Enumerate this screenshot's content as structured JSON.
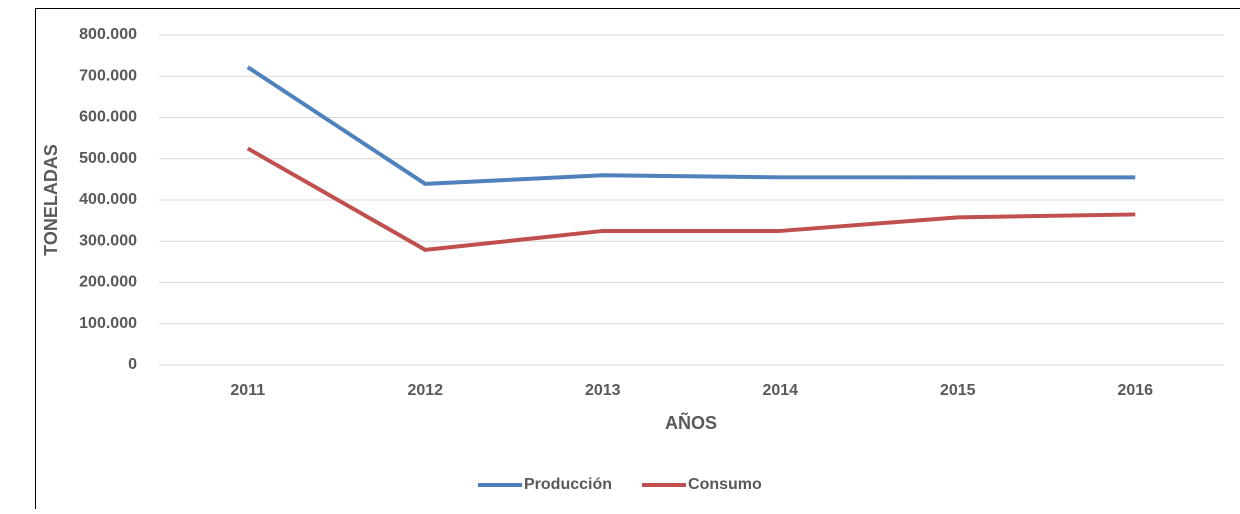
{
  "chart_data": {
    "type": "line",
    "y_label": "TONELADAS",
    "x_label": "AÑOS",
    "categories": [
      "2011",
      "2012",
      "2013",
      "2014",
      "2015",
      "2016"
    ],
    "series": [
      {
        "name": "Producción",
        "color": "#4f81bd",
        "values": [
          722000,
          439000,
          460000,
          455000,
          455000,
          455000
        ]
      },
      {
        "name": "Consumo",
        "color": "#c0504d",
        "values": [
          525000,
          279000,
          325000,
          325000,
          358000,
          365000
        ]
      }
    ],
    "ylim": [
      0,
      800000
    ],
    "yticks": [
      0,
      {
        "value": 100000,
        "label": "100.000"
      },
      {
        "value": 200000,
        "label": "200.000"
      },
      {
        "value": 300000,
        "label": "300.000"
      },
      {
        "value": 400000,
        "label": "400.000"
      },
      {
        "value": 500000,
        "label": "500.000"
      },
      {
        "value": 600000,
        "label": "600.000"
      },
      {
        "value": 700000,
        "label": "700.000"
      },
      {
        "value": 800000,
        "label": "800.000"
      }
    ],
    "grid": true,
    "legend": "bottom"
  }
}
